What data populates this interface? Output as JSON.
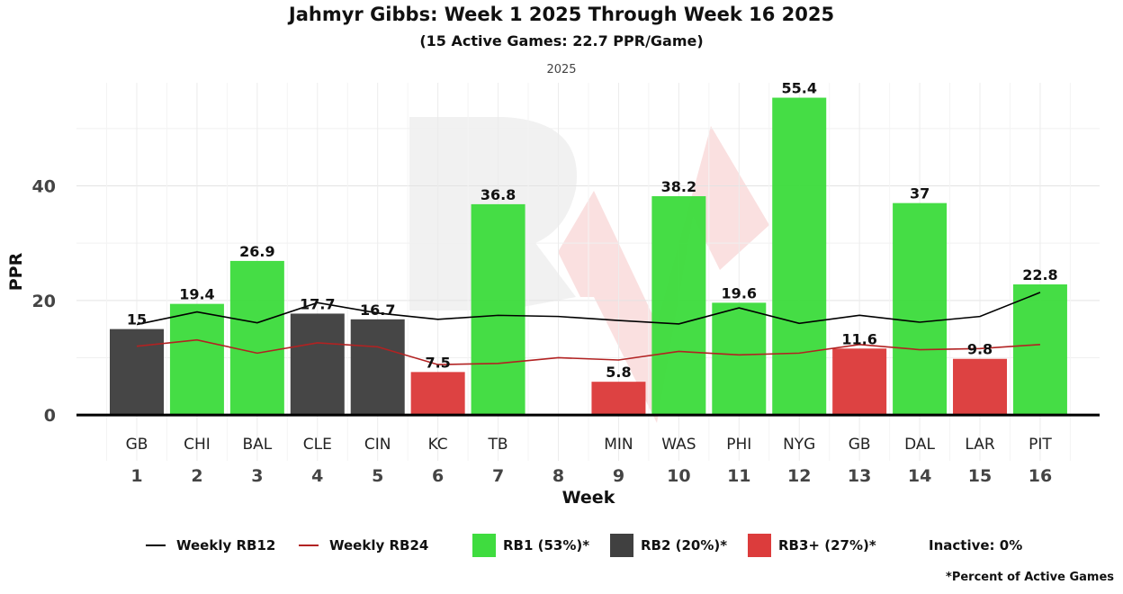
{
  "chart_data": {
    "type": "bar",
    "title": "Jahmyr Gibbs: Week 1 2025 Through Week 16 2025",
    "subtitle": "(15 Active Games: 22.7 PPR/Game)",
    "facet_label": "2025",
    "xlabel": "Week",
    "ylabel": "PPR",
    "ylim": [
      -8,
      58
    ],
    "y_ticks": [
      0,
      20,
      40
    ],
    "grid": true,
    "legend_position": "bottom",
    "weeks": [
      1,
      2,
      3,
      4,
      5,
      6,
      7,
      8,
      9,
      10,
      11,
      12,
      13,
      14,
      15,
      16
    ],
    "opponents": [
      "GB",
      "CHI",
      "BAL",
      "CLE",
      "CIN",
      "KC",
      "TB",
      "",
      "MIN",
      "WAS",
      "PHI",
      "NYG",
      "GB",
      "DAL",
      "LAR",
      "PIT"
    ],
    "values": [
      15,
      19.4,
      26.9,
      17.7,
      16.7,
      7.5,
      36.8,
      null,
      5.8,
      38.2,
      19.6,
      55.4,
      11.6,
      37,
      9.8,
      22.8
    ],
    "value_labels": [
      "15",
      "19.4",
      "26.9",
      "17.7",
      "16.7",
      "7.5",
      "36.8",
      "",
      "5.8",
      "38.2",
      "19.6",
      "55.4",
      "11.6",
      "37",
      "9.8",
      "22.8"
    ],
    "tiers": [
      "RB2",
      "RB1",
      "RB1",
      "RB2",
      "RB2",
      "RB3+",
      "RB1",
      "",
      "RB3+",
      "RB1",
      "RB1",
      "RB1",
      "RB3+",
      "RB1",
      "RB3+",
      "RB1"
    ],
    "series": [
      {
        "name": "Weekly RB12",
        "color": "#000000",
        "values": [
          15.8,
          18.0,
          16.1,
          19.6,
          17.8,
          16.7,
          17.4,
          17.2,
          16.5,
          15.9,
          18.7,
          16.0,
          17.4,
          16.2,
          17.2,
          21.4
        ]
      },
      {
        "name": "Weekly RB24",
        "color": "#b22222",
        "values": [
          12.0,
          13.1,
          10.8,
          12.6,
          11.9,
          8.8,
          9.0,
          10.0,
          9.6,
          11.1,
          10.5,
          10.8,
          12.3,
          11.4,
          11.6,
          12.3
        ]
      }
    ],
    "legend": {
      "line_rb12": "Weekly RB12",
      "line_rb24": "Weekly RB24",
      "rb1": "RB1 (53%)*",
      "rb2": "RB2 (20%)*",
      "rb3": "RB3+ (27%)*",
      "inactive": "Inactive: 0%"
    },
    "tier_colors": {
      "RB1": "#3fdc3f",
      "RB2": "#404040",
      "RB3+": "#dc3c3c"
    },
    "footnote": "*Percent of Active Games"
  }
}
